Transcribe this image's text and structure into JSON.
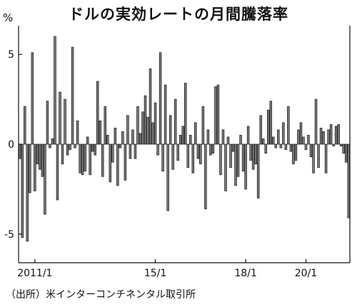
{
  "title": "ドルの実効レートの月間騰落率",
  "unit": "%",
  "source": "（出所）米インターコンチネンタル取引所",
  "chart_data": {
    "type": "bar",
    "title": "ドルの実効レートの月間騰落率",
    "ylabel": "%",
    "xlabel": "",
    "ylim": [
      -6.6,
      6.6
    ],
    "yticks": [
      -5,
      0,
      5
    ],
    "x_start": "2010-07",
    "xticks": [
      {
        "label": "2011/1",
        "at": "2011-01"
      },
      {
        "label": "15/1",
        "at": "2015-01"
      },
      {
        "label": "18/1",
        "at": "2018-01"
      },
      {
        "label": "20/1",
        "at": "2020-01"
      }
    ],
    "grid": false,
    "values": [
      -0.8,
      -5.2,
      2.1,
      -5.4,
      -2.7,
      5.1,
      -2.6,
      -1.1,
      -1.4,
      -1.8,
      -3.9,
      2.4,
      -0.2,
      0.3,
      6.0,
      -3.1,
      2.9,
      -1.1,
      2.5,
      -0.6,
      -0.3,
      5.4,
      -0.2,
      1.3,
      -1.6,
      -1.7,
      -1.5,
      0.4,
      -1.7,
      -0.4,
      -0.6,
      3.5,
      1.3,
      -1.8,
      2.1,
      0.5,
      -2.1,
      -1.0,
      0.9,
      -2.3,
      -0.2,
      0.7,
      -2.0,
      1.6,
      -0.8,
      0.8,
      -0.8,
      2.1,
      0.6,
      1.8,
      2.7,
      1.5,
      4.2,
      1.2,
      2.3,
      -0.6,
      5.1,
      -1.5,
      3.3,
      -3.7,
      1.6,
      -1.4,
      2.5,
      -0.9,
      0.5,
      1.0,
      3.4,
      -1.3,
      0.5,
      -1.6,
      1.2,
      -0.8,
      -1.1,
      2.1,
      -3.6,
      0.8,
      -0.6,
      -0.5,
      3.2,
      3.3,
      -1.7,
      0.8,
      -2.6,
      0.4,
      -1.3,
      -0.4,
      -2.3,
      -1.8,
      0.5,
      -1.5,
      -2.5,
      1.0,
      -0.9,
      -1.4,
      -1.1,
      -3.0,
      1.6,
      0.3,
      -0.5,
      1.9,
      2.4,
      0.4,
      -0.2,
      0.8,
      -0.2,
      1.2,
      -0.3,
      2.1,
      -0.4,
      -1.1,
      -0.9,
      0.8,
      1.2,
      0.4,
      -0.3,
      0.5,
      -0.7,
      -1.6,
      2.5,
      -1.3,
      0.9,
      0.7,
      -1.6,
      0.8,
      1.1,
      -0.1,
      1.0,
      1.1,
      -0.1,
      -0.5,
      -1.0,
      -4.1
    ]
  }
}
